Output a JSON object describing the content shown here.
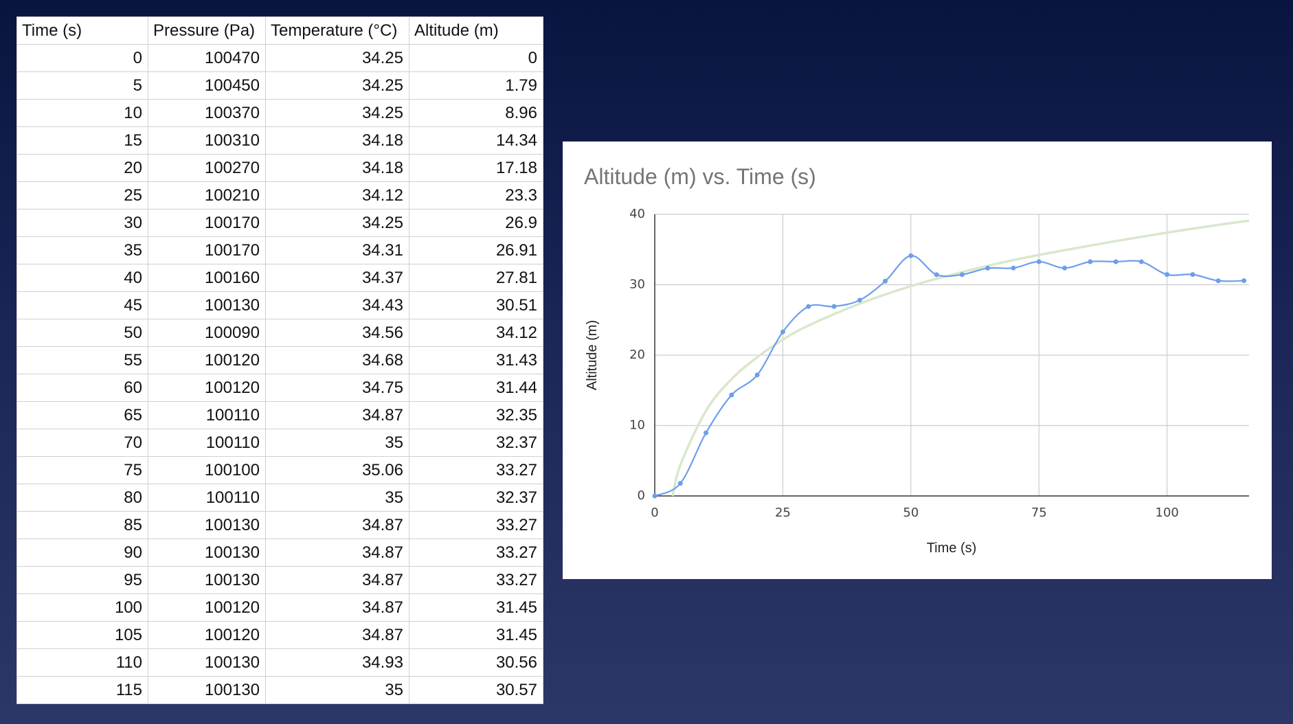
{
  "table": {
    "headers": [
      "Time (s)",
      "Pressure (Pa)",
      "Temperature (°C)",
      "Altitude (m)"
    ],
    "rows": [
      [
        "0",
        "100470",
        "34.25",
        "0"
      ],
      [
        "5",
        "100450",
        "34.25",
        "1.79"
      ],
      [
        "10",
        "100370",
        "34.25",
        "8.96"
      ],
      [
        "15",
        "100310",
        "34.18",
        "14.34"
      ],
      [
        "20",
        "100270",
        "34.18",
        "17.18"
      ],
      [
        "25",
        "100210",
        "34.12",
        "23.3"
      ],
      [
        "30",
        "100170",
        "34.25",
        "26.9"
      ],
      [
        "35",
        "100170",
        "34.31",
        "26.91"
      ],
      [
        "40",
        "100160",
        "34.37",
        "27.81"
      ],
      [
        "45",
        "100130",
        "34.43",
        "30.51"
      ],
      [
        "50",
        "100090",
        "34.56",
        "34.12"
      ],
      [
        "55",
        "100120",
        "34.68",
        "31.43"
      ],
      [
        "60",
        "100120",
        "34.75",
        "31.44"
      ],
      [
        "65",
        "100110",
        "34.87",
        "32.35"
      ],
      [
        "70",
        "100110",
        "35",
        "32.37"
      ],
      [
        "75",
        "100100",
        "35.06",
        "33.27"
      ],
      [
        "80",
        "100110",
        "35",
        "32.37"
      ],
      [
        "85",
        "100130",
        "34.87",
        "33.27"
      ],
      [
        "90",
        "100130",
        "34.87",
        "33.27"
      ],
      [
        "95",
        "100130",
        "34.87",
        "33.27"
      ],
      [
        "100",
        "100120",
        "34.87",
        "31.45"
      ],
      [
        "105",
        "100120",
        "34.87",
        "31.45"
      ],
      [
        "110",
        "100130",
        "34.93",
        "30.56"
      ],
      [
        "115",
        "100130",
        "35",
        "30.57"
      ]
    ]
  },
  "chart_data": {
    "type": "line",
    "title": "Altitude (m) vs. Time (s)",
    "xlabel": "Time (s)",
    "ylabel": "Altitude (m)",
    "xlim": [
      0,
      116
    ],
    "ylim": [
      0,
      40
    ],
    "x_ticks": [
      0,
      25,
      50,
      75,
      100
    ],
    "y_ticks": [
      0,
      10,
      20,
      30,
      40
    ],
    "grid": true,
    "legend": "none",
    "series": [
      {
        "x": [
          0,
          5,
          10,
          15,
          20,
          25,
          30,
          35,
          40,
          45,
          50,
          55,
          60,
          65,
          70,
          75,
          80,
          85,
          90,
          95,
          100,
          105,
          110,
          115
        ],
        "y": [
          0,
          1.79,
          8.96,
          14.34,
          17.18,
          23.3,
          26.9,
          26.91,
          27.81,
          30.51,
          34.12,
          31.43,
          31.44,
          32.35,
          32.37,
          33.27,
          32.37,
          33.27,
          33.27,
          33.27,
          31.45,
          31.45,
          30.56,
          30.57
        ],
        "color": "#6d9eeb"
      }
    ],
    "trendline": {
      "type": "logarithmic",
      "color": "#d9e7cb",
      "x": [
        3.5,
        5,
        10,
        15,
        20,
        25,
        30,
        40,
        50,
        60,
        70,
        80,
        90,
        100,
        110,
        116
      ],
      "y": [
        0,
        4.4,
        12.1,
        16.6,
        19.7,
        22.2,
        24.2,
        27.3,
        29.8,
        31.8,
        33.5,
        34.9,
        36.2,
        37.4,
        38.5,
        39.1
      ]
    }
  }
}
